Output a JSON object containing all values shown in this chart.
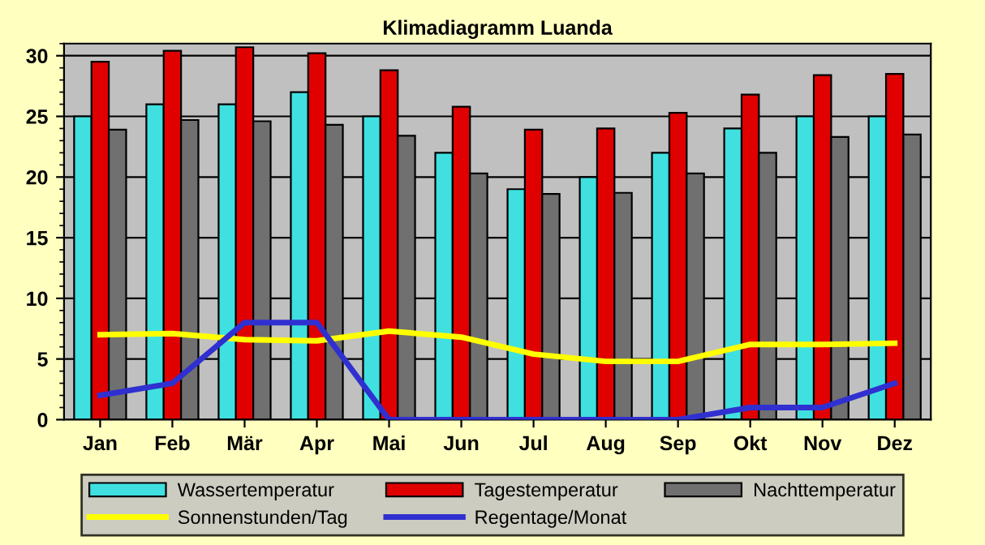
{
  "chart_data": {
    "type": "bar",
    "title": "Klimadiagramm Luanda",
    "categories": [
      "Jan",
      "Feb",
      "Mär",
      "Apr",
      "Mai",
      "Jun",
      "Jul",
      "Aug",
      "Sep",
      "Okt",
      "Nov",
      "Dez"
    ],
    "series": [
      {
        "name": "Wassertemperatur",
        "color": "#40e0e0",
        "values": [
          25,
          26,
          26,
          27,
          25,
          22,
          19,
          20,
          22,
          24,
          25,
          25
        ]
      },
      {
        "name": "Tagestemperatur",
        "color": "#e00000",
        "values": [
          29.5,
          30.4,
          30.7,
          30.2,
          28.8,
          25.8,
          23.9,
          24,
          25.3,
          26.8,
          28.4,
          28.5
        ]
      },
      {
        "name": "Nachttemperatur",
        "color": "#707070",
        "values": [
          23.9,
          24.7,
          24.6,
          24.3,
          23.4,
          20.3,
          18.6,
          18.7,
          20.3,
          22,
          23.3,
          23.5
        ]
      },
      {
        "name": "Sonnenstunden/Tag",
        "type": "line",
        "color": "#ffff00",
        "values": [
          7,
          7.1,
          6.6,
          6.5,
          7.3,
          6.8,
          5.4,
          4.8,
          4.8,
          6.2,
          6.2,
          6.3
        ]
      },
      {
        "name": "Regentage/Monat",
        "type": "line",
        "color": "#3030d0",
        "values": [
          2,
          3,
          8,
          8,
          0,
          0,
          0,
          0,
          0,
          1,
          1,
          3
        ]
      }
    ],
    "ylim": [
      0,
      31
    ],
    "yticks": [
      0,
      5,
      10,
      15,
      20,
      25,
      30
    ],
    "grid": "y",
    "legend": "bottom",
    "marker": "none",
    "line_style": "solid"
  }
}
